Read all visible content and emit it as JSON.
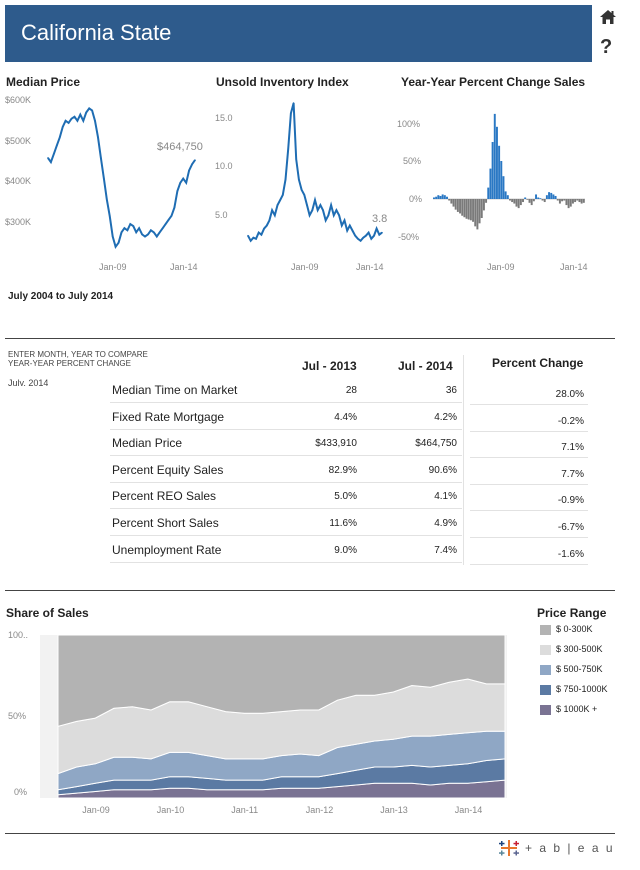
{
  "header": {
    "title": "California State"
  },
  "icons": {
    "home": "home-icon",
    "help": "help-icon",
    "help_glyph": "?"
  },
  "charts": {
    "median_price": {
      "title": "Median Price",
      "y_ticks": [
        "$600K",
        "$500K",
        "$400K",
        "$300K"
      ],
      "x_ticks": [
        "Jan-09",
        "Jan-14"
      ],
      "annotation": "$464,750"
    },
    "inventory": {
      "title": "Unsold Inventory Index",
      "y_ticks": [
        "15.0",
        "10.0",
        "5.0"
      ],
      "x_ticks": [
        "Jan-09",
        "Jan-14"
      ],
      "annotation": "3.8"
    },
    "yoy": {
      "title": "Year-Year Percent Change Sales",
      "y_ticks": [
        "100%",
        "50%",
        "0%",
        "-50%"
      ],
      "x_ticks": [
        "Jan-09",
        "Jan-14"
      ]
    }
  },
  "date_range": "July 2004 to July 2014",
  "compare": {
    "instruction_line1": "ENTER MONTH, YEAR TO COMPARE",
    "instruction_line2": "YEAR-YEAR PERCENT CHANGE",
    "selected": "July, 2014",
    "col1": "Jul - 2013",
    "col2": "Jul - 2014",
    "col3": "Percent Change",
    "rows": [
      {
        "label": "Median Time on Market",
        "v1": "28",
        "v2": "36",
        "pct": "28.0%"
      },
      {
        "label": "Fixed Rate Mortgage",
        "v1": "4.4%",
        "v2": "4.2%",
        "pct": "-0.2%"
      },
      {
        "label": "Median Price",
        "v1": "$433,910",
        "v2": "$464,750",
        "pct": "7.1%"
      },
      {
        "label": "Percent Equity Sales",
        "v1": "82.9%",
        "v2": "90.6%",
        "pct": "7.7%"
      },
      {
        "label": "Percent REO Sales",
        "v1": "5.0%",
        "v2": "4.1%",
        "pct": "-0.9%"
      },
      {
        "label": "Percent Short Sales",
        "v1": "11.6%",
        "v2": "4.9%",
        "pct": "-6.7%"
      },
      {
        "label": "Unemployment Rate",
        "v1": "9.0%",
        "v2": "7.4%",
        "pct": "-1.6%"
      }
    ]
  },
  "share": {
    "title": "Share of Sales",
    "y_ticks": [
      "100..",
      "50%",
      "0%"
    ],
    "x_ticks": [
      "Jan-09",
      "Jan-10",
      "Jan-11",
      "Jan-12",
      "Jan-13",
      "Jan-14"
    ]
  },
  "legend": {
    "title": "Price Range",
    "items": [
      {
        "label": "$ 0-300K",
        "color": "#b3b3b3"
      },
      {
        "label": "$ 300-500K",
        "color": "#dcdcdc"
      },
      {
        "label": "$ 500-750K",
        "color": "#8fa7c5"
      },
      {
        "label": "$ 750-1000K",
        "color": "#5b7aa3"
      },
      {
        "label": "$ 1000K +",
        "color": "#7a7393"
      }
    ]
  },
  "logo": {
    "text": "+ a b | e a u"
  },
  "colors": {
    "line": "#1f6db3",
    "bar_pos": "#2a78c4",
    "bar_neg": "#7a7a7a",
    "header": "#2e5b8c"
  },
  "chart_data": [
    {
      "type": "line",
      "title": "Median Price",
      "x_start": 2004.5,
      "x_end": 2014.5,
      "ylim": [
        240000,
        620000
      ],
      "x": [
        2004.5,
        2004.7,
        2004.9,
        2005.1,
        2005.3,
        2005.5,
        2005.7,
        2005.9,
        2006.1,
        2006.3,
        2006.5,
        2006.7,
        2006.9,
        2007.1,
        2007.3,
        2007.5,
        2007.7,
        2007.9,
        2008.1,
        2008.3,
        2008.5,
        2008.7,
        2008.9,
        2009.1,
        2009.3,
        2009.5,
        2009.7,
        2009.9,
        2010.1,
        2010.3,
        2010.5,
        2010.7,
        2010.9,
        2011.1,
        2011.3,
        2011.5,
        2011.7,
        2011.9,
        2012.1,
        2012.3,
        2012.5,
        2012.7,
        2012.9,
        2013.1,
        2013.3,
        2013.5,
        2013.7,
        2013.9,
        2014.1,
        2014.3,
        2014.5
      ],
      "values": [
        470000,
        460000,
        480000,
        500000,
        520000,
        545000,
        560000,
        555000,
        565000,
        570000,
        560000,
        575000,
        560000,
        580000,
        590000,
        585000,
        560000,
        520000,
        470000,
        420000,
        370000,
        330000,
        280000,
        255000,
        265000,
        290000,
        300000,
        295000,
        310000,
        305000,
        290000,
        300000,
        285000,
        280000,
        285000,
        295000,
        290000,
        280000,
        290000,
        300000,
        310000,
        320000,
        330000,
        350000,
        390000,
        410000,
        420000,
        410000,
        440000,
        455000,
        464750
      ],
      "annotation": "$464,750"
    },
    {
      "type": "line",
      "title": "Unsold Inventory Index",
      "x_start": 2004.5,
      "x_end": 2014.5,
      "ylim": [
        2,
        17
      ],
      "x": [
        2004.5,
        2004.7,
        2004.9,
        2005.1,
        2005.3,
        2005.5,
        2005.7,
        2005.9,
        2006.1,
        2006.3,
        2006.5,
        2006.7,
        2006.9,
        2007.1,
        2007.3,
        2007.5,
        2007.7,
        2007.9,
        2008.1,
        2008.3,
        2008.5,
        2008.7,
        2008.9,
        2009.1,
        2009.3,
        2009.5,
        2009.7,
        2009.9,
        2010.1,
        2010.3,
        2010.5,
        2010.7,
        2010.9,
        2011.1,
        2011.3,
        2011.5,
        2011.7,
        2011.9,
        2012.1,
        2012.3,
        2012.5,
        2012.7,
        2012.9,
        2013.1,
        2013.3,
        2013.5,
        2013.7,
        2013.9,
        2014.1,
        2014.3,
        2014.5
      ],
      "values": [
        3.5,
        3.0,
        3.3,
        3.2,
        3.8,
        3.6,
        4.2,
        4.5,
        5.0,
        6.0,
        5.5,
        6.5,
        7.0,
        7.5,
        9.0,
        12.0,
        15.5,
        16.5,
        11.0,
        9.0,
        8.0,
        7.5,
        6.5,
        5.5,
        6.0,
        7.0,
        6.0,
        6.5,
        6.0,
        5.0,
        5.5,
        6.5,
        5.5,
        6.0,
        5.5,
        4.5,
        5.0,
        4.0,
        4.5,
        4.0,
        3.5,
        3.2,
        3.0,
        3.3,
        3.5,
        3.8,
        3.2,
        3.5,
        4.2,
        3.6,
        3.8
      ],
      "annotation": "3.8"
    },
    {
      "type": "bar",
      "title": "Year-Year Percent Change Sales",
      "x_start": 2004.5,
      "x_end": 2014.5,
      "ylim": [
        -60,
        120
      ],
      "values": [
        2,
        3,
        5,
        4,
        6,
        5,
        3,
        -2,
        -6,
        -10,
        -14,
        -17,
        -19,
        -22,
        -24,
        -26,
        -27,
        -28,
        -30,
        -36,
        -40,
        -32,
        -25,
        -15,
        -5,
        15,
        40,
        75,
        112,
        95,
        70,
        50,
        30,
        10,
        5,
        -2,
        -4,
        -6,
        -10,
        -12,
        -8,
        -4,
        2,
        -1,
        -5,
        -8,
        -3,
        6,
        2,
        1,
        -2,
        -4,
        5,
        9,
        8,
        6,
        4,
        -2,
        -6,
        -3,
        -2,
        -8,
        -12,
        -10,
        -6,
        -4,
        -2,
        -4,
        -6,
        -5
      ],
      "x_ticks": [
        "Jan-09",
        "Jan-14"
      ]
    },
    {
      "type": "area",
      "title": "Share of Sales",
      "x_start": 2008.5,
      "x_end": 2014.5,
      "ylim": [
        0,
        100
      ],
      "stacked": true,
      "x": [
        2008.5,
        2008.75,
        2009.0,
        2009.25,
        2009.5,
        2009.75,
        2010.0,
        2010.25,
        2010.5,
        2010.75,
        2011.0,
        2011.25,
        2011.5,
        2011.75,
        2012.0,
        2012.25,
        2012.5,
        2012.75,
        2013.0,
        2013.25,
        2013.5,
        2013.75,
        2014.0,
        2014.25,
        2014.5
      ],
      "series": [
        {
          "name": "$ 1000K +",
          "values": [
            2,
            3,
            4,
            5,
            5,
            5,
            6,
            6,
            5,
            5,
            5,
            5,
            6,
            6,
            6,
            7,
            8,
            9,
            9,
            9,
            8,
            9,
            9,
            10,
            11
          ]
        },
        {
          "name": "$ 750-1000K",
          "values": [
            3,
            4,
            5,
            6,
            6,
            6,
            7,
            7,
            7,
            6,
            6,
            6,
            7,
            7,
            7,
            8,
            9,
            10,
            10,
            11,
            11,
            11,
            12,
            13,
            13
          ]
        },
        {
          "name": "$ 500-750K",
          "values": [
            10,
            12,
            12,
            14,
            14,
            13,
            15,
            15,
            14,
            13,
            13,
            13,
            13,
            14,
            13,
            16,
            16,
            16,
            17,
            18,
            19,
            19,
            19,
            18,
            17
          ]
        },
        {
          "name": "$ 300-500K",
          "values": [
            29,
            28,
            28,
            30,
            31,
            30,
            31,
            31,
            30,
            29,
            28,
            28,
            27,
            27,
            28,
            29,
            30,
            28,
            29,
            31,
            30,
            32,
            33,
            29,
            29
          ]
        },
        {
          "name": "$ 0-300K",
          "values": [
            56,
            53,
            51,
            45,
            44,
            46,
            41,
            41,
            44,
            47,
            48,
            48,
            47,
            46,
            46,
            40,
            37,
            37,
            35,
            31,
            32,
            29,
            27,
            30,
            30
          ]
        }
      ]
    }
  ]
}
